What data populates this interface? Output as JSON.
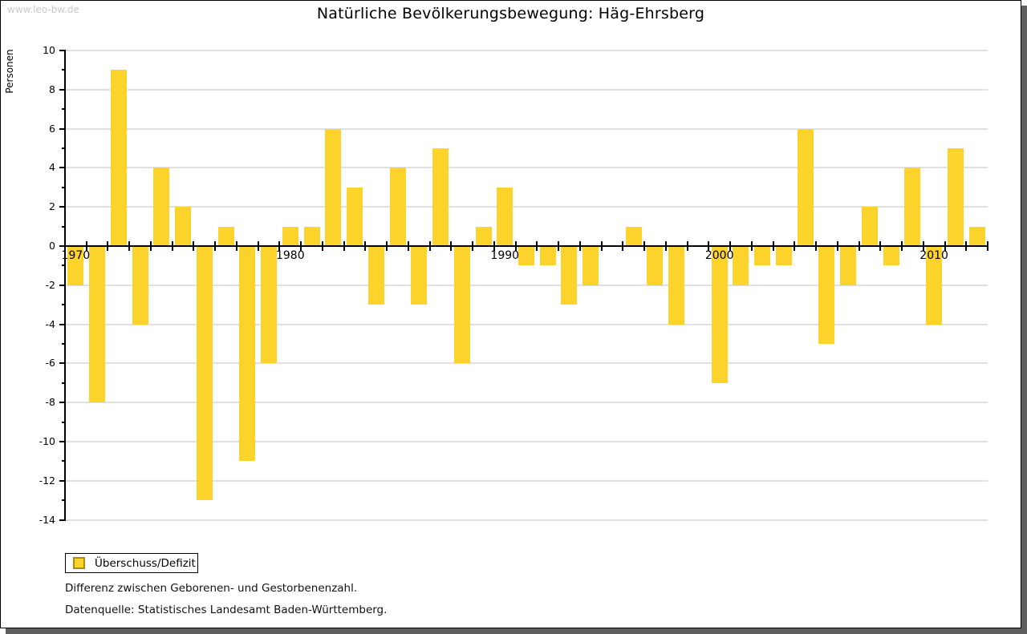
{
  "watermark": "www.leo-bw.de",
  "title": "Natürliche Bevölkerungsbewegung: Häg-Ehrsberg",
  "legend": {
    "label": "Überschuss/Defizit"
  },
  "notes": [
    "Differenz zwischen Geborenen- und Gestorbenenzahl.",
    "Datenquelle: Statistisches Landesamt Baden-Württemberg."
  ],
  "chart_data": {
    "type": "bar",
    "title": "Natürliche Bevölkerungsbewegung: Häg-Ehrsberg",
    "xlabel": "",
    "ylabel": "Personen",
    "series_name": "Überschuss/Defizit",
    "x": [
      1970,
      1971,
      1972,
      1973,
      1974,
      1975,
      1976,
      1977,
      1978,
      1979,
      1980,
      1981,
      1982,
      1983,
      1984,
      1985,
      1986,
      1987,
      1988,
      1989,
      1990,
      1991,
      1992,
      1993,
      1994,
      1995,
      1996,
      1997,
      1998,
      1999,
      2000,
      2001,
      2002,
      2003,
      2004,
      2005,
      2006,
      2007,
      2008,
      2009,
      2010,
      2011,
      2012
    ],
    "values": [
      -2,
      -8,
      9,
      -4,
      4,
      2,
      -13,
      1,
      -11,
      -6,
      1,
      1,
      6,
      3,
      -3,
      4,
      -3,
      5,
      -6,
      1,
      3,
      -1,
      -1,
      -3,
      -2,
      0,
      1,
      -2,
      -4,
      0,
      -7,
      -2,
      -1,
      -1,
      6,
      -5,
      -2,
      2,
      -1,
      4,
      -4,
      5,
      1
    ],
    "ylim": [
      -14,
      10
    ],
    "yticks": [
      10,
      8,
      6,
      4,
      2,
      0,
      -2,
      -4,
      -6,
      -8,
      -10,
      -12,
      -14
    ],
    "x_decade_labels": [
      1970,
      1980,
      1990,
      2000,
      2010
    ],
    "grid": true,
    "legend_position": "bottom-left",
    "bar_color": "#fcd32b",
    "grid_color": "#e0e0e0",
    "axis_color": "#000000",
    "swatch_border_color": "#a98f00"
  }
}
